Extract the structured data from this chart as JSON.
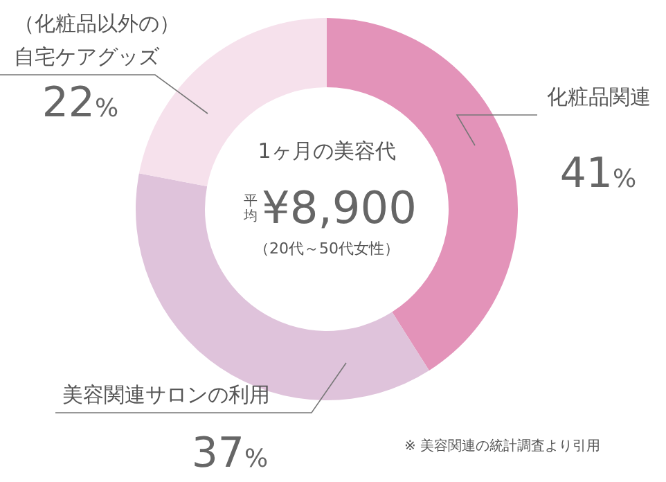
{
  "chart_data": {
    "type": "donut",
    "title": "1ヶ月の美容代",
    "categories": [
      "化粧品関連",
      "美容関連サロンの利用",
      "（化粧品以外の）自宅ケアグッズ"
    ],
    "values": [
      41,
      37,
      22
    ],
    "colors": [
      "#e393b9",
      "#dfc3db",
      "#f6e1ec"
    ],
    "value_labels": [
      "41%",
      "37%",
      "22%"
    ],
    "annotations": [
      "平均",
      "¥8,900",
      "（20代～50代女性）",
      "※ 美容関連の統計調査より引用"
    ]
  }
}
